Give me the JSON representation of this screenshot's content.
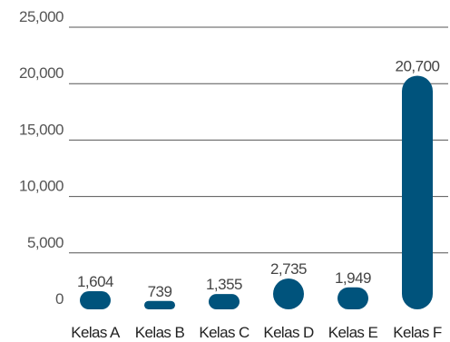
{
  "chart_data": {
    "type": "bar",
    "categories": [
      "Kelas A",
      "Kelas B",
      "Kelas C",
      "Kelas D",
      "Kelas E",
      "Kelas F"
    ],
    "values": [
      1604,
      739,
      1355,
      2735,
      1949,
      20700
    ],
    "value_labels": [
      "1,604",
      "739",
      "1,355",
      "2,735",
      "1,949",
      "20,700"
    ],
    "y_ticks": [
      0,
      5000,
      10000,
      15000,
      20000,
      25000
    ],
    "y_tick_labels": [
      "0",
      "5,000",
      "10,000",
      "15,000",
      "20,000",
      "25,000"
    ],
    "ylim": [
      0,
      25000
    ],
    "title": "",
    "xlabel": "",
    "ylabel": "",
    "grid": true,
    "bar_color": "#00537C",
    "grid_color": "#555555"
  }
}
